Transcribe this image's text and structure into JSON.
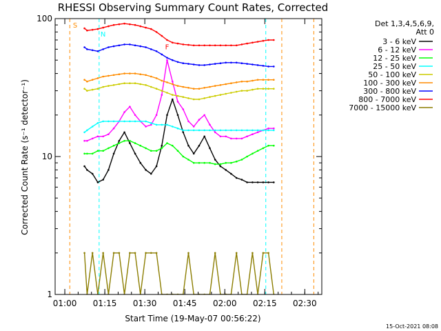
{
  "chart_data": {
    "type": "line",
    "title": "RHESSI Observing Summary Count Rates, Corrected",
    "xlabel": "Start Time (19-May-07 00:56:22)",
    "ylabel": "Corrected Count Rate (s⁻¹ detector⁻¹)",
    "footer": "15-Oct-2021 08:08",
    "x_unit": "minutes after 00:56:22",
    "xlim": [
      0,
      100
    ],
    "ylim": [
      1,
      100
    ],
    "yscale": "log",
    "grid": false,
    "legend_position": "right",
    "x_ticks": [
      {
        "x": 3.63,
        "label": "01:00"
      },
      {
        "x": 18.63,
        "label": "01:15"
      },
      {
        "x": 33.63,
        "label": "01:30"
      },
      {
        "x": 48.63,
        "label": "01:45"
      },
      {
        "x": 63.63,
        "label": "02:00"
      },
      {
        "x": 78.63,
        "label": "02:15"
      },
      {
        "x": 93.63,
        "label": "02:30"
      }
    ],
    "y_ticks": [
      {
        "y": 1,
        "label": "1"
      },
      {
        "y": 10,
        "label": "10"
      },
      {
        "y": 100,
        "label": "100"
      }
    ],
    "legend_header": [
      "Det 1,3,4,5,6,9,",
      "Att 0"
    ],
    "annotations": [
      {
        "text": "S",
        "x": 7.5,
        "y": 86,
        "color": "#ff8c00"
      },
      {
        "text": "N",
        "x": 18.0,
        "y": 74,
        "color": "#00ffff"
      },
      {
        "text": "F",
        "x": 42.0,
        "y": 60,
        "color": "#ff0000"
      }
    ],
    "vlines": [
      {
        "x": 5.5,
        "color": "#ff8c00"
      },
      {
        "x": 16.5,
        "color": "#00ffff"
      },
      {
        "x": 79.0,
        "color": "#00ffff"
      },
      {
        "x": 85.0,
        "color": "#ff8c00"
      },
      {
        "x": 97.0,
        "color": "#ff8c00"
      }
    ],
    "series": [
      {
        "name": "3 - 6 keV",
        "color": "#000000",
        "x": [
          11,
          12,
          14,
          16,
          18,
          20,
          22,
          24,
          26,
          28,
          30,
          32,
          34,
          36,
          38,
          40,
          42,
          44,
          46,
          48,
          50,
          52,
          54,
          56,
          58,
          60,
          62,
          64,
          66,
          68,
          70,
          72,
          74,
          76,
          78,
          80,
          82
        ],
        "values": [
          8.5,
          8.0,
          7.5,
          6.5,
          6.8,
          8.0,
          10.5,
          13.0,
          15.0,
          12.5,
          10.5,
          9.0,
          8.0,
          7.5,
          8.5,
          12.0,
          20.0,
          26.0,
          20.0,
          15.0,
          12.0,
          10.5,
          12.0,
          14.0,
          11.5,
          9.5,
          8.5,
          8.0,
          7.5,
          7.0,
          6.8,
          6.5,
          6.5,
          6.5,
          6.5,
          6.5,
          6.5
        ]
      },
      {
        "name": "6 - 12 keV",
        "color": "#ff00ff",
        "x": [
          11,
          12,
          14,
          16,
          18,
          20,
          22,
          24,
          26,
          28,
          30,
          32,
          34,
          36,
          38,
          40,
          42,
          44,
          46,
          48,
          50,
          52,
          54,
          56,
          58,
          60,
          62,
          64,
          66,
          68,
          70,
          72,
          74,
          76,
          78,
          80,
          82
        ],
        "values": [
          13.0,
          13.0,
          13.5,
          14.0,
          14.0,
          14.5,
          16.0,
          18.0,
          21.0,
          23.0,
          20.0,
          18.0,
          16.5,
          17.0,
          20.0,
          28.0,
          50.0,
          35.0,
          25.0,
          22.0,
          18.0,
          16.5,
          18.5,
          20.0,
          17.0,
          15.0,
          14.0,
          14.0,
          13.5,
          13.5,
          13.5,
          14.0,
          14.5,
          15.0,
          15.5,
          16.0,
          16.0
        ]
      },
      {
        "name": "12 - 25 keV",
        "color": "#00ff00",
        "x": [
          11,
          12,
          14,
          16,
          18,
          20,
          22,
          24,
          26,
          28,
          30,
          32,
          34,
          36,
          38,
          40,
          42,
          44,
          46,
          48,
          50,
          52,
          54,
          56,
          58,
          60,
          62,
          64,
          66,
          68,
          70,
          72,
          74,
          76,
          78,
          80,
          82
        ],
        "values": [
          10.5,
          10.5,
          10.5,
          11.0,
          11.0,
          11.5,
          12.0,
          12.5,
          13.0,
          13.0,
          12.5,
          12.0,
          11.5,
          11.0,
          11.0,
          11.5,
          12.5,
          12.0,
          11.0,
          10.0,
          9.5,
          9.0,
          9.0,
          9.0,
          9.0,
          8.8,
          8.8,
          9.0,
          9.0,
          9.2,
          9.5,
          10.0,
          10.5,
          11.0,
          11.5,
          12.0,
          12.0
        ]
      },
      {
        "name": "25 - 50 keV",
        "color": "#00ffff",
        "x": [
          11,
          12,
          14,
          16,
          18,
          20,
          22,
          24,
          26,
          28,
          30,
          32,
          34,
          36,
          38,
          40,
          42,
          44,
          46,
          48,
          50,
          52,
          54,
          56,
          58,
          60,
          62,
          64,
          66,
          68,
          70,
          72,
          74,
          76,
          78,
          80,
          82
        ],
        "values": [
          15.0,
          15.5,
          16.5,
          17.5,
          18.0,
          18.0,
          18.0,
          18.0,
          18.0,
          18.0,
          18.0,
          18.0,
          18.0,
          17.5,
          17.0,
          17.0,
          17.0,
          16.5,
          16.0,
          15.5,
          15.5,
          15.5,
          15.5,
          15.5,
          15.5,
          15.5,
          15.5,
          15.5,
          15.5,
          15.5,
          15.5,
          15.5,
          15.5,
          15.5,
          15.5,
          15.5,
          15.5
        ]
      },
      {
        "name": "50 - 100 keV",
        "color": "#cccc00",
        "x": [
          11,
          12,
          14,
          16,
          18,
          20,
          22,
          24,
          26,
          28,
          30,
          32,
          34,
          36,
          38,
          40,
          42,
          44,
          46,
          48,
          50,
          52,
          54,
          56,
          58,
          60,
          62,
          64,
          66,
          68,
          70,
          72,
          74,
          76,
          78,
          80,
          82
        ],
        "values": [
          31.0,
          30.0,
          30.5,
          31.0,
          32.0,
          32.5,
          33.0,
          33.5,
          34.0,
          34.0,
          34.0,
          33.5,
          33.0,
          32.0,
          31.0,
          30.0,
          29.0,
          28.0,
          27.5,
          27.0,
          26.5,
          26.0,
          26.0,
          26.5,
          27.0,
          27.5,
          28.0,
          28.5,
          29.0,
          29.5,
          30.0,
          30.0,
          30.5,
          31.0,
          31.0,
          31.0,
          31.0
        ]
      },
      {
        "name": "100 - 300 keV",
        "color": "#ff8c00",
        "x": [
          11,
          12,
          14,
          16,
          18,
          20,
          22,
          24,
          26,
          28,
          30,
          32,
          34,
          36,
          38,
          40,
          42,
          44,
          46,
          48,
          50,
          52,
          54,
          56,
          58,
          60,
          62,
          64,
          66,
          68,
          70,
          72,
          74,
          76,
          78,
          80,
          82
        ],
        "values": [
          36.0,
          35.0,
          36.0,
          37.0,
          38.0,
          38.5,
          39.0,
          39.5,
          40.0,
          40.0,
          40.0,
          39.5,
          39.0,
          38.0,
          37.0,
          35.5,
          34.5,
          33.5,
          32.5,
          32.0,
          31.5,
          31.0,
          31.0,
          31.5,
          32.0,
          32.5,
          33.0,
          33.5,
          34.0,
          34.5,
          35.0,
          35.0,
          35.5,
          36.0,
          36.0,
          36.0,
          36.0
        ]
      },
      {
        "name": "300 - 800 keV",
        "color": "#0000ff",
        "x": [
          11,
          12,
          14,
          16,
          18,
          20,
          22,
          24,
          26,
          28,
          30,
          32,
          34,
          36,
          38,
          40,
          42,
          44,
          46,
          48,
          50,
          52,
          54,
          56,
          58,
          60,
          62,
          64,
          66,
          68,
          70,
          72,
          74,
          76,
          78,
          80,
          82
        ],
        "values": [
          62.0,
          60.0,
          59.0,
          58.0,
          60.0,
          62.0,
          63.0,
          64.0,
          65.0,
          65.0,
          64.0,
          63.0,
          62.0,
          60.0,
          58.0,
          55.0,
          52.0,
          50.0,
          48.5,
          47.5,
          47.0,
          46.5,
          46.0,
          46.0,
          46.5,
          47.0,
          47.5,
          48.0,
          48.0,
          48.0,
          47.5,
          47.0,
          46.5,
          46.0,
          45.5,
          45.0,
          45.0
        ]
      },
      {
        "name": "800 - 7000 keV",
        "color": "#ff0000",
        "x": [
          11,
          12,
          14,
          16,
          18,
          20,
          22,
          24,
          26,
          28,
          30,
          32,
          34,
          36,
          38,
          40,
          42,
          44,
          46,
          48,
          50,
          52,
          54,
          56,
          58,
          60,
          62,
          64,
          66,
          68,
          70,
          72,
          74,
          76,
          78,
          80,
          82
        ],
        "values": [
          85.0,
          82.0,
          83.0,
          84.0,
          86.0,
          88.0,
          90.0,
          91.0,
          92.0,
          91.0,
          90.0,
          88.0,
          86.0,
          84.0,
          80.0,
          75.0,
          70.0,
          67.0,
          66.0,
          65.0,
          64.5,
          64.0,
          64.0,
          64.0,
          64.0,
          64.0,
          64.0,
          64.0,
          64.0,
          64.0,
          65.0,
          66.0,
          67.0,
          68.0,
          69.0,
          70.0,
          70.0
        ]
      },
      {
        "name": "7000 - 15000 keV",
        "color": "#8b7d00",
        "x": [
          11,
          12,
          14,
          16,
          18,
          20,
          22,
          24,
          26,
          28,
          30,
          32,
          34,
          36,
          38,
          40,
          42,
          44,
          46,
          48,
          50,
          52,
          54,
          56,
          58,
          60,
          62,
          64,
          66,
          68,
          70,
          72,
          74,
          76,
          78,
          80,
          82
        ],
        "values": [
          2.0,
          1.0,
          2.0,
          1.0,
          2.0,
          1.0,
          2.0,
          2.0,
          1.0,
          2.0,
          2.0,
          1.0,
          2.0,
          2.0,
          2.0,
          1.0,
          1.0,
          1.0,
          1.0,
          1.0,
          2.0,
          1.0,
          1.0,
          1.0,
          1.0,
          2.0,
          1.0,
          1.0,
          1.0,
          2.0,
          1.0,
          1.0,
          2.0,
          1.0,
          2.0,
          2.0,
          1.0
        ]
      }
    ]
  }
}
